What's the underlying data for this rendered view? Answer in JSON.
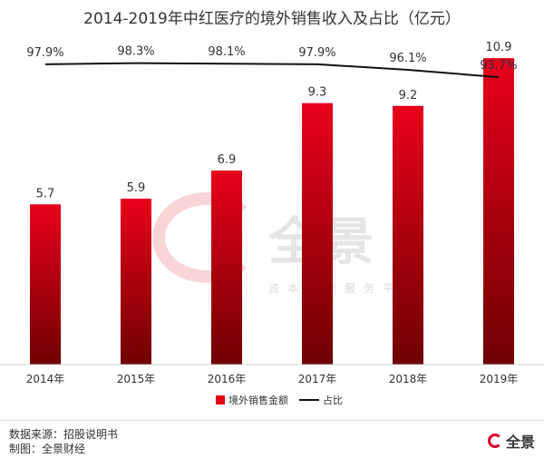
{
  "title": "2014-2019年中红医疗的境外销售收入及占比（亿元）",
  "chart_data": {
    "type": "bar",
    "categories": [
      "2014年",
      "2015年",
      "2016年",
      "2017年",
      "2018年",
      "2019年"
    ],
    "series": [
      {
        "name": "境外销售金额",
        "type": "bar",
        "values": [
          5.7,
          5.9,
          6.9,
          9.3,
          9.2,
          10.9
        ],
        "labels": [
          "5.7",
          "5.9",
          "6.9",
          "9.3",
          "9.2",
          "10.9"
        ]
      },
      {
        "name": "占比",
        "type": "line",
        "values": [
          97.9,
          98.3,
          98.1,
          97.9,
          96.1,
          93.7
        ],
        "labels": [
          "97.9%",
          "98.3%",
          "98.1%",
          "97.9%",
          "96.1%",
          "93.7%"
        ]
      }
    ],
    "ylim": [
      0,
      12
    ],
    "ylim_secondary": [
      0,
      110
    ],
    "grid": false,
    "legend": "bottom",
    "colors": {
      "bar_top": "#e8001c",
      "bar_bottom": "#6e0000",
      "line": "#111111"
    }
  },
  "footer": {
    "source": "数据来源：招股说明书",
    "maker": "制图：全景财经"
  },
  "watermark": {
    "main": "全景",
    "sub": "资本市场服务平台"
  },
  "brand": {
    "name": "全景"
  }
}
